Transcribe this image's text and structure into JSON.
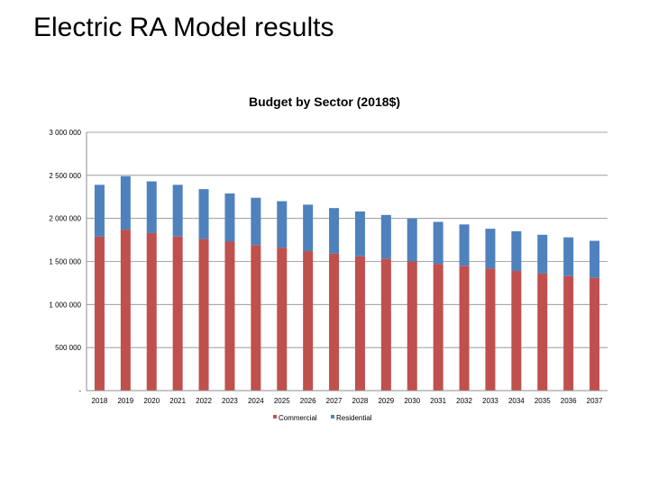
{
  "slide_title": "Electric RA Model results",
  "chart_data": {
    "type": "bar",
    "stacked": true,
    "title": "Budget by Sector (2018$)",
    "categories": [
      "2018",
      "2019",
      "2020",
      "2021",
      "2022",
      "2023",
      "2024",
      "2025",
      "2026",
      "2027",
      "2028",
      "2029",
      "2030",
      "2031",
      "2032",
      "2033",
      "2034",
      "2035",
      "2036",
      "2037"
    ],
    "series": [
      {
        "name": "Commercial",
        "color": "#C0504D",
        "values": [
          1790000,
          1870000,
          1830000,
          1790000,
          1760000,
          1730000,
          1690000,
          1660000,
          1620000,
          1590000,
          1560000,
          1530000,
          1500000,
          1470000,
          1450000,
          1420000,
          1390000,
          1360000,
          1330000,
          1310000
        ]
      },
      {
        "name": "Residential",
        "color": "#4F81BD",
        "values": [
          600000,
          620000,
          600000,
          600000,
          580000,
          560000,
          550000,
          540000,
          540000,
          530000,
          520000,
          510000,
          500000,
          490000,
          480000,
          460000,
          460000,
          450000,
          450000,
          430000
        ]
      }
    ],
    "ylim": [
      0,
      3000000
    ],
    "yticks": [
      {
        "value": 0,
        "label": "-"
      },
      {
        "value": 500000,
        "label": "500 000"
      },
      {
        "value": 1000000,
        "label": "1 000 000"
      },
      {
        "value": 1500000,
        "label": "1 500 000"
      },
      {
        "value": 2000000,
        "label": "2 000 000"
      },
      {
        "value": 2500000,
        "label": "2 500 000"
      },
      {
        "value": 3000000,
        "label": "3 000 000"
      }
    ],
    "grid": true,
    "legend_position": "bottom"
  }
}
